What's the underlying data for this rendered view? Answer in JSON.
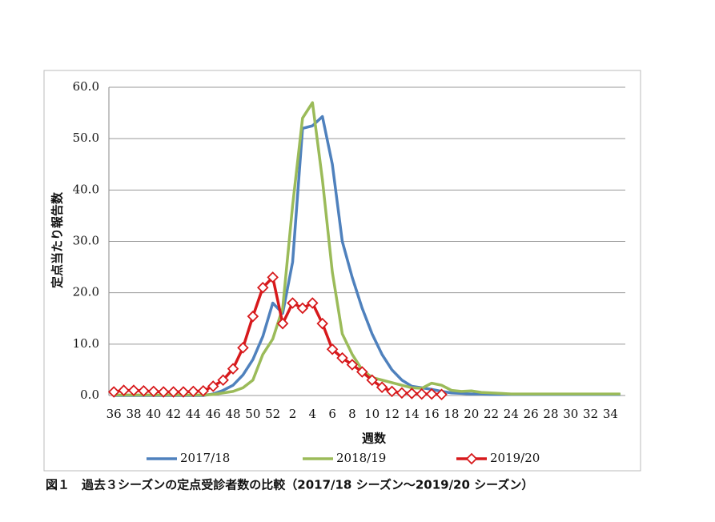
{
  "chart_data": {
    "type": "line",
    "y_label": "定点当たり報告数",
    "x_label": "週数",
    "caption": "図１　過去３シーズンの定点受診者数の比較（2017/18 シーズン～2019/20 シーズン）",
    "categories": [
      "36",
      null,
      "38",
      null,
      "40",
      null,
      "42",
      null,
      "44",
      null,
      "46",
      null,
      "48",
      null,
      "50",
      null,
      "52",
      null,
      "2",
      null,
      "4",
      null,
      "6",
      null,
      "8",
      null,
      "10",
      null,
      "12",
      null,
      "14",
      null,
      "16",
      null,
      "18",
      null,
      "20",
      null,
      "22",
      null,
      "24",
      null,
      "26",
      null,
      "28",
      null,
      "30",
      null,
      "32",
      null,
      "34",
      null
    ],
    "ylim": [
      0,
      60
    ],
    "yticks": [
      {
        "value": 0,
        "label": "0.0"
      },
      {
        "value": 10,
        "label": "10.0"
      },
      {
        "value": 20,
        "label": "20.0"
      },
      {
        "value": 30,
        "label": "30.0"
      },
      {
        "value": 40,
        "label": "40.0"
      },
      {
        "value": 50,
        "label": "50.0"
      },
      {
        "value": 60,
        "label": "60.0"
      }
    ],
    "grid": true,
    "legend": "bottom",
    "series": [
      {
        "name": "2017/18",
        "color": "#4f81bd",
        "markers": false,
        "values": [
          0,
          0,
          0,
          0,
          0,
          0,
          0,
          0,
          0,
          0,
          0.3,
          1,
          2,
          4,
          7,
          11.5,
          18,
          16,
          26,
          52,
          52.5,
          54.3,
          45,
          30,
          23,
          17,
          12,
          8,
          5,
          3,
          1.8,
          1.5,
          1.2,
          0.8,
          0.5,
          0.4,
          0.3,
          0.3,
          0.2,
          0.2,
          0.2,
          0.2,
          0.2,
          0.2,
          0.2,
          0.2,
          0.2,
          0.2,
          0.2,
          0.2,
          0.2,
          0.2
        ]
      },
      {
        "name": "2018/19",
        "color": "#9bbb59",
        "markers": false,
        "values": [
          0.1,
          0.1,
          0.1,
          0.1,
          0.1,
          0.1,
          0.1,
          0.1,
          0.1,
          0.1,
          0.2,
          0.5,
          0.8,
          1.5,
          3,
          8,
          11,
          17,
          37,
          54,
          57,
          42,
          24,
          12,
          8,
          5,
          3.5,
          3,
          2.5,
          2,
          1.5,
          1.4,
          2.4,
          2,
          1,
          0.8,
          0.9,
          0.6,
          0.5,
          0.4,
          0.3,
          0.3,
          0.3,
          0.3,
          0.3,
          0.3,
          0.3,
          0.3,
          0.3,
          0.3,
          0.3,
          0.3
        ]
      },
      {
        "name": "2019/20",
        "color": "#d7191c",
        "markers": true,
        "values": [
          0.7,
          1,
          1,
          0.9,
          0.8,
          0.7,
          0.7,
          0.7,
          0.8,
          0.9,
          1.8,
          3,
          5.2,
          9.3,
          15.4,
          21,
          23,
          14,
          18,
          17,
          18,
          14,
          9,
          7.3,
          6,
          4.6,
          3,
          1.6,
          0.8,
          0.5,
          0.4,
          0.3,
          0.3,
          0.2,
          null,
          null,
          null,
          null,
          null,
          null,
          null,
          null,
          null,
          null,
          null,
          null,
          null,
          null,
          null,
          null,
          null,
          null
        ]
      }
    ]
  }
}
